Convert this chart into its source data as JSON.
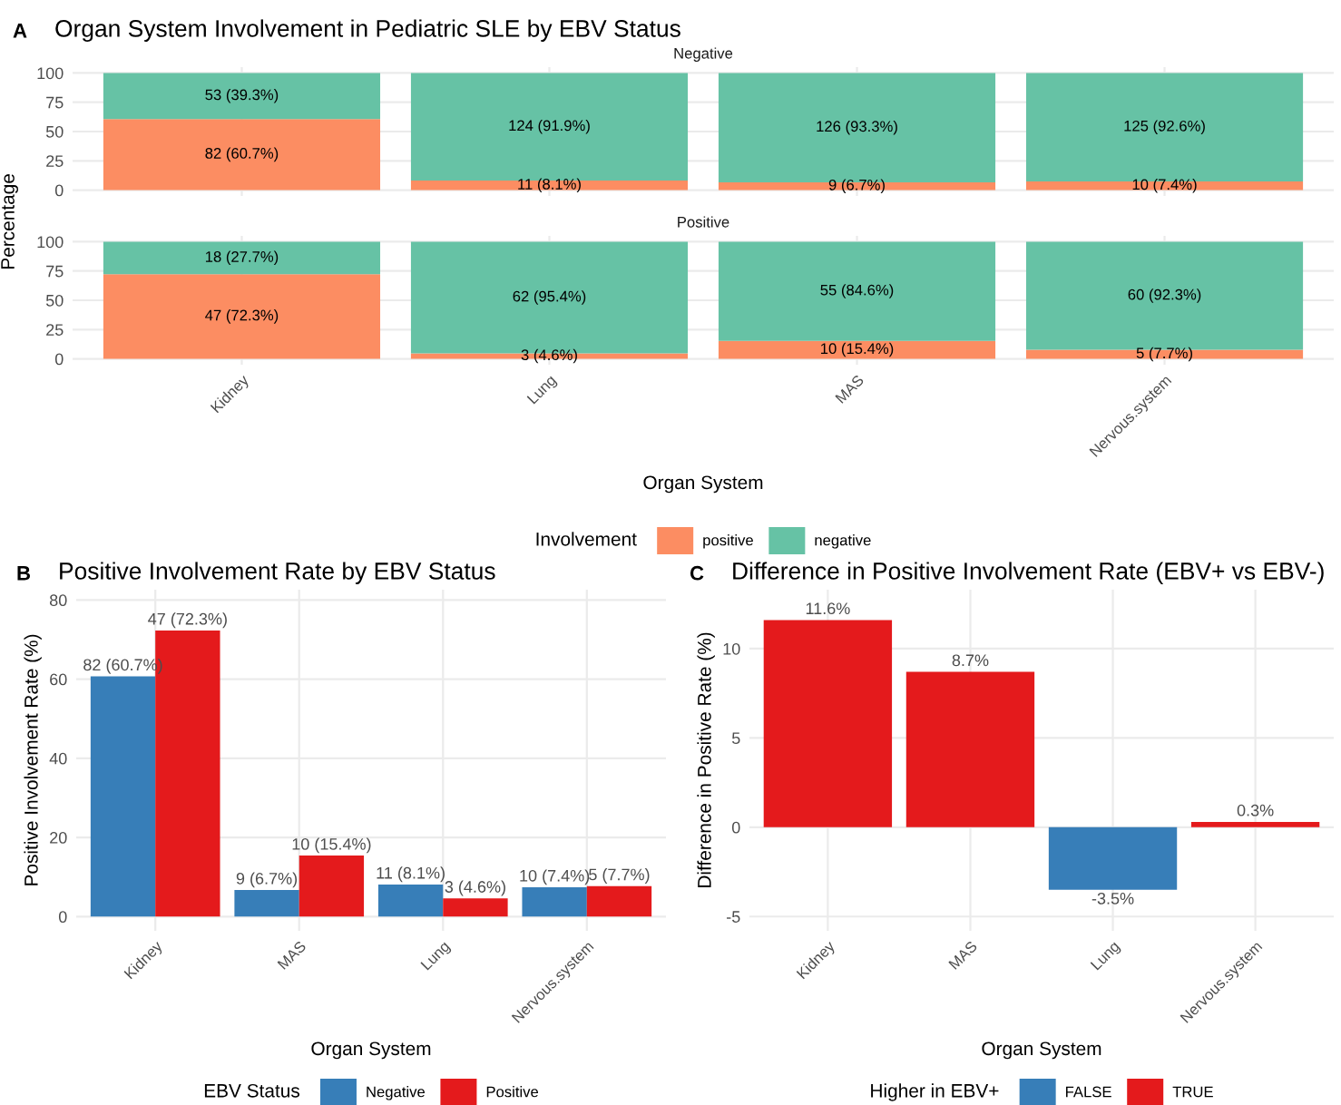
{
  "chart_data": [
    {
      "type": "bar",
      "title": "Organ System Involvement in Pediatric SLE by EBV Status",
      "subtitle": "Negative",
      "ylabel": "Percentage",
      "annotations": [
        "A"
      ],
      "categories": [
        null,
        null,
        null,
        null
      ],
      "stacked": true,
      "ylim": [
        -5,
        105
      ],
      "yticks": [
        0,
        25,
        50,
        75,
        100
      ],
      "grid": true,
      "tick_labels": "y",
      "series": [
        {
          "color": "#fc8d62",
          "values": [
            60.7,
            8.1,
            6.7,
            7.4
          ],
          "value_labels": [
            "82 (60.7%)",
            "11 (8.1%)",
            "9 (6.7%)",
            "10 (7.4%)"
          ]
        },
        {
          "color": "#66c2a5",
          "values": [
            39.3,
            91.9,
            93.3,
            92.6
          ],
          "value_labels": [
            "53 (39.3%)",
            "124 (91.9%)",
            "126 (93.3%)",
            "125 (92.6%)"
          ]
        }
      ]
    },
    {
      "type": "bar",
      "subtitle": "Positive",
      "xlabel": "Organ System",
      "legend_title": "Involvement",
      "legend": "bottom",
      "categories": [
        "Kidney",
        "Lung",
        "MAS",
        "Nervous.system"
      ],
      "stacked": true,
      "ylim": [
        -5,
        105
      ],
      "yticks": [
        0,
        25,
        50,
        75,
        100
      ],
      "grid": true,
      "series": [
        {
          "name": "positive",
          "color": "#fc8d62",
          "values": [
            72.3,
            4.6,
            15.4,
            7.7
          ],
          "value_labels": [
            "47 (72.3%)",
            "3 (4.6%)",
            "10 (15.4%)",
            "5 (7.7%)"
          ]
        },
        {
          "name": "negative",
          "color": "#66c2a5",
          "values": [
            27.7,
            95.4,
            84.6,
            92.3
          ],
          "value_labels": [
            "18 (27.7%)",
            "62 (95.4%)",
            "55 (84.6%)",
            "60 (92.3%)"
          ]
        }
      ]
    },
    {
      "type": "bar",
      "title": "Positive Involvement Rate by EBV Status",
      "xlabel": "Organ System",
      "ylabel": "Positive Involvement Rate (%)",
      "legend_title": "EBV Status",
      "legend": "bottom",
      "annotations": [
        "B"
      ],
      "categories": [
        "Kidney",
        "MAS",
        "Lung",
        "Nervous.system"
      ],
      "ylim": [
        -3.6,
        82.6
      ],
      "yticks": [
        0,
        20,
        40,
        60,
        80
      ],
      "grid": true,
      "series": [
        {
          "name": "Negative",
          "color": "#377eb8",
          "values": [
            60.7,
            6.7,
            8.1,
            7.4
          ],
          "value_labels": [
            "82 (60.7%)",
            "9 (6.7%)",
            "11 (8.1%)",
            "10 (7.4%)"
          ]
        },
        {
          "name": "Positive",
          "color": "#e41a1c",
          "values": [
            72.3,
            15.4,
            4.6,
            7.7
          ],
          "value_labels": [
            "47 (72.3%)",
            "10 (15.4%)",
            "3 (4.6%)",
            "5 (7.7%)"
          ]
        }
      ]
    },
    {
      "type": "bar",
      "title": "Difference in Positive Involvement Rate (EBV+ vs EBV-)",
      "xlabel": "Organ System",
      "ylabel": "Difference in Positive Rate (%)",
      "legend_title": "Higher in EBV+",
      "legend": "bottom",
      "annotations": [
        "C"
      ],
      "categories": [
        "Kidney",
        "MAS",
        "Lung",
        "Nervous.system"
      ],
      "stacked": true,
      "ylim": [
        -5.8,
        13.3
      ],
      "yticks": [
        -5,
        0,
        5,
        10
      ],
      "grid": true,
      "series": [
        {
          "name": "FALSE",
          "color": "#377eb8",
          "values": [
            null,
            null,
            -3.5,
            null
          ],
          "value_labels": [
            null,
            null,
            "-3.5%",
            null
          ]
        },
        {
          "name": "TRUE",
          "color": "#e41a1c",
          "values": [
            11.6,
            8.7,
            null,
            0.3
          ],
          "value_labels": [
            "11.6%",
            "8.7%",
            null,
            "0.3%"
          ]
        }
      ]
    }
  ]
}
